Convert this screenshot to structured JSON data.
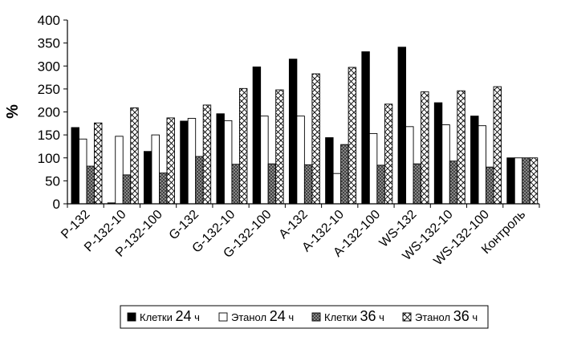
{
  "chart_data": {
    "type": "bar",
    "title": "",
    "xlabel": "",
    "ylabel": "%",
    "ylim": [
      0,
      400
    ],
    "yticks": [
      0,
      50,
      100,
      150,
      200,
      250,
      300,
      350,
      400
    ],
    "grid": false,
    "legend_position": "bottom",
    "categories": [
      "P-132",
      "P-132-10",
      "P-132-100",
      "G-132",
      "G-132-10",
      "G-132-100",
      "A-132",
      "A-132-10",
      "A-132-100",
      "WS-132",
      "WS-132-10",
      "WS-132-100",
      "Контроль"
    ],
    "series": [
      {
        "name": "Клетки 24 ч",
        "legend_name": "Клетки",
        "legend_num": "24",
        "legend_unit": "ч",
        "fill": "solid-black",
        "values": [
          166,
          2,
          114,
          180,
          196,
          298,
          315,
          144,
          331,
          341,
          220,
          191,
          100
        ]
      },
      {
        "name": "Этанол 24 ч",
        "legend_name": "Этанол",
        "legend_num": "24",
        "legend_unit": "ч",
        "fill": "white",
        "values": [
          141,
          147,
          150,
          186,
          181,
          191,
          191,
          66,
          153,
          168,
          172,
          170,
          100
        ]
      },
      {
        "name": "Клетки 36 ч",
        "legend_name": "Клетки",
        "legend_num": "36",
        "legend_unit": "ч",
        "fill": "hatched-grey",
        "values": [
          82,
          63,
          67,
          103,
          86,
          87,
          85,
          129,
          84,
          87,
          93,
          80,
          100
        ]
      },
      {
        "name": "Этанол36 ч",
        "legend_name": "Этанол",
        "legend_num": "36",
        "legend_unit": "ч",
        "fill": "crosshatch-white",
        "values": [
          176,
          209,
          187,
          215,
          251,
          248,
          283,
          297,
          217,
          244,
          246,
          255,
          100
        ]
      }
    ]
  }
}
